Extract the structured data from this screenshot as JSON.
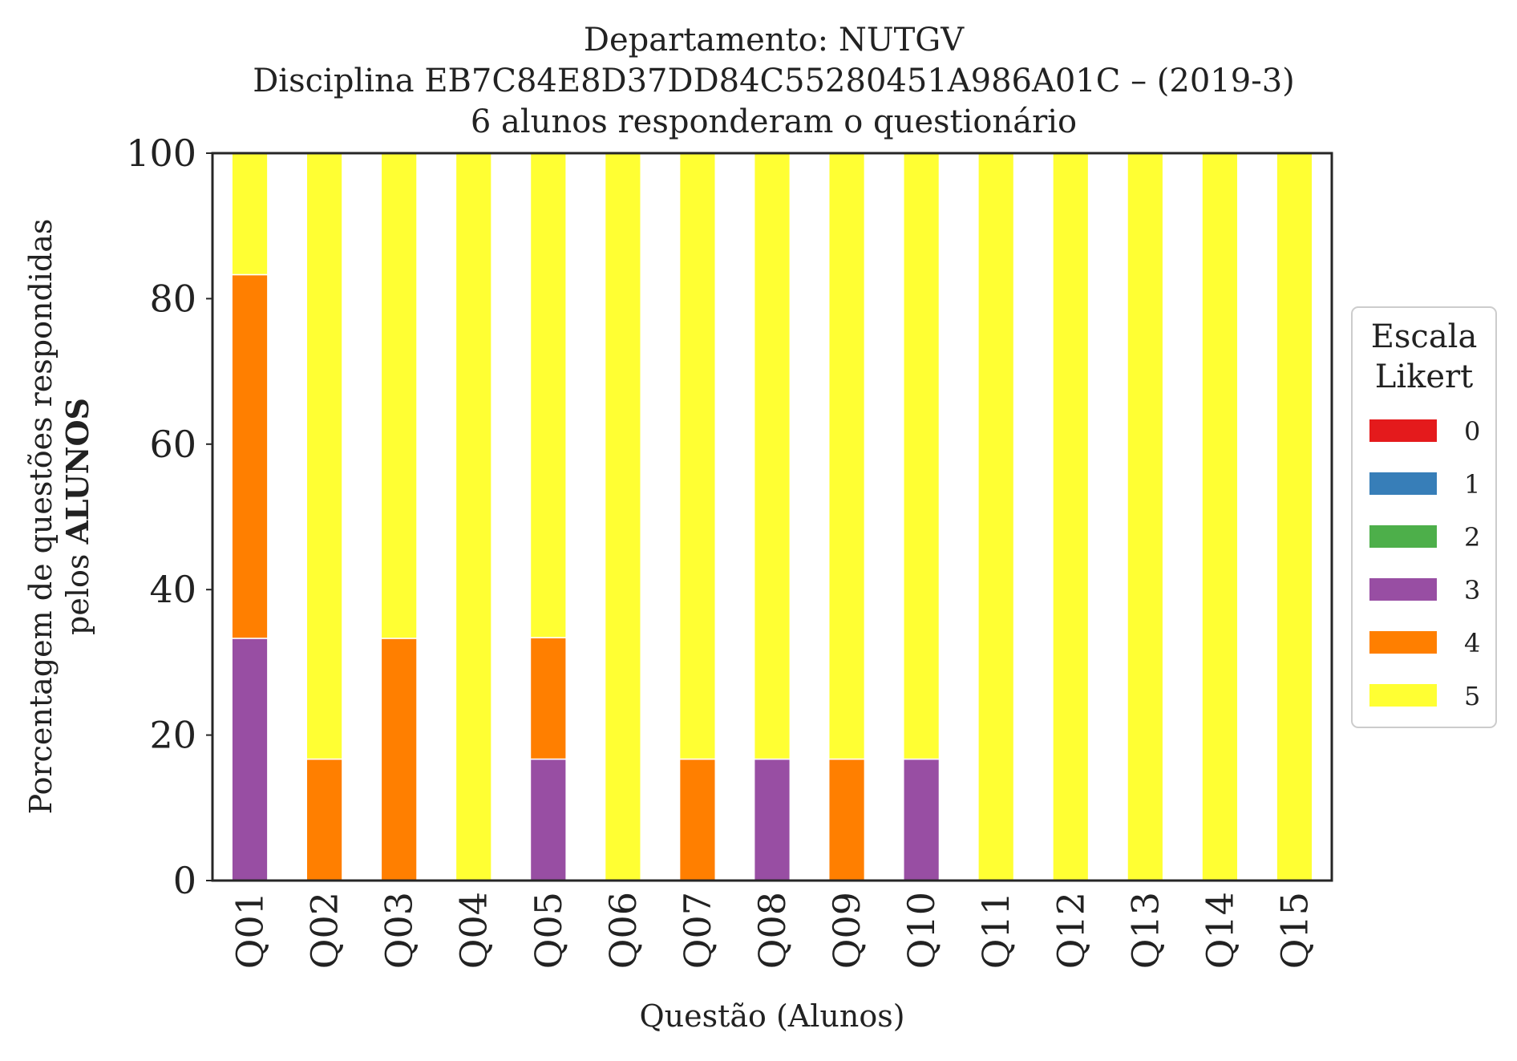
{
  "chart_data": {
    "type": "bar",
    "stacked": true,
    "title_lines": [
      "Departamento: NUTGV",
      "Disciplina EB7C84E8D37DD84C55280451A986A01C – (2019-3)",
      "6 alunos responderam o questionário"
    ],
    "xlabel": "Questão (Alunos)",
    "ylabel_line1": "Porcentagem de questões respondidas",
    "ylabel_line2_prefix": "pelos ",
    "ylabel_line2_bold": "ALUNOS",
    "ylim": [
      0,
      100
    ],
    "yticks": [
      "0",
      "20",
      "40",
      "60",
      "80",
      "100"
    ],
    "grid": false,
    "legend_position": "right",
    "legend_title_lines": [
      "Escala",
      "Likert"
    ],
    "categories": [
      "Q01",
      "Q02",
      "Q03",
      "Q04",
      "Q05",
      "Q06",
      "Q07",
      "Q08",
      "Q09",
      "Q10",
      "Q11",
      "Q12",
      "Q13",
      "Q14",
      "Q15"
    ],
    "series": [
      {
        "name": "0",
        "color": "#e41a1c",
        "values": [
          0,
          0,
          0,
          0,
          0,
          0,
          0,
          0,
          0,
          0,
          0,
          0,
          0,
          0,
          0
        ]
      },
      {
        "name": "1",
        "color": "#377eb8",
        "values": [
          0,
          0,
          0,
          0,
          0,
          0,
          0,
          0,
          0,
          0,
          0,
          0,
          0,
          0,
          0
        ]
      },
      {
        "name": "2",
        "color": "#4daf4a",
        "values": [
          0,
          0,
          0,
          0,
          0,
          0,
          0,
          0,
          0,
          0,
          0,
          0,
          0,
          0,
          0
        ]
      },
      {
        "name": "3",
        "color": "#984ea3",
        "values": [
          33.3,
          0,
          0,
          0,
          16.7,
          0,
          0,
          16.7,
          0,
          16.7,
          0,
          0,
          0,
          0,
          0
        ]
      },
      {
        "name": "4",
        "color": "#ff7f00",
        "values": [
          50,
          16.7,
          33.3,
          0,
          16.7,
          0,
          16.7,
          0,
          16.7,
          0,
          0,
          0,
          0,
          0,
          0
        ]
      },
      {
        "name": "5",
        "color": "#ffff33",
        "values": [
          16.7,
          83.3,
          66.7,
          100,
          66.6,
          100,
          83.3,
          83.3,
          83.3,
          83.3,
          100,
          100,
          100,
          100,
          100
        ]
      }
    ]
  }
}
